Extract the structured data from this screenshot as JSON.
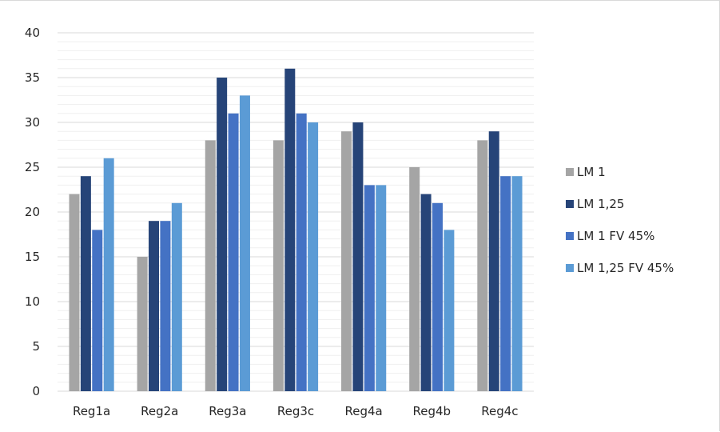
{
  "chart_data": {
    "type": "bar",
    "categories": [
      "Reg1a",
      "Reg2a",
      "Reg3a",
      "Reg3c",
      "Reg4a",
      "Reg4b",
      "Reg4c"
    ],
    "series": [
      {
        "name": "LM 1",
        "color": "#a5a5a5",
        "values": [
          22,
          15,
          28,
          28,
          29,
          25,
          28
        ]
      },
      {
        "name": "LM 1,25",
        "color": "#264478",
        "values": [
          24,
          19,
          35,
          36,
          30,
          22,
          29
        ]
      },
      {
        "name": "LM 1 FV 45%",
        "color": "#4472c4",
        "values": [
          18,
          19,
          31,
          31,
          23,
          21,
          24
        ]
      },
      {
        "name": "LM 1,25 FV 45%",
        "color": "#5b9bd5",
        "values": [
          26,
          21,
          33,
          30,
          23,
          18,
          24
        ]
      }
    ],
    "yticks": [
      "0",
      "5",
      "10",
      "15",
      "20",
      "25",
      "30",
      "35",
      "40"
    ],
    "ylim": [
      0,
      40
    ],
    "grid": true,
    "legend_position": "right"
  }
}
